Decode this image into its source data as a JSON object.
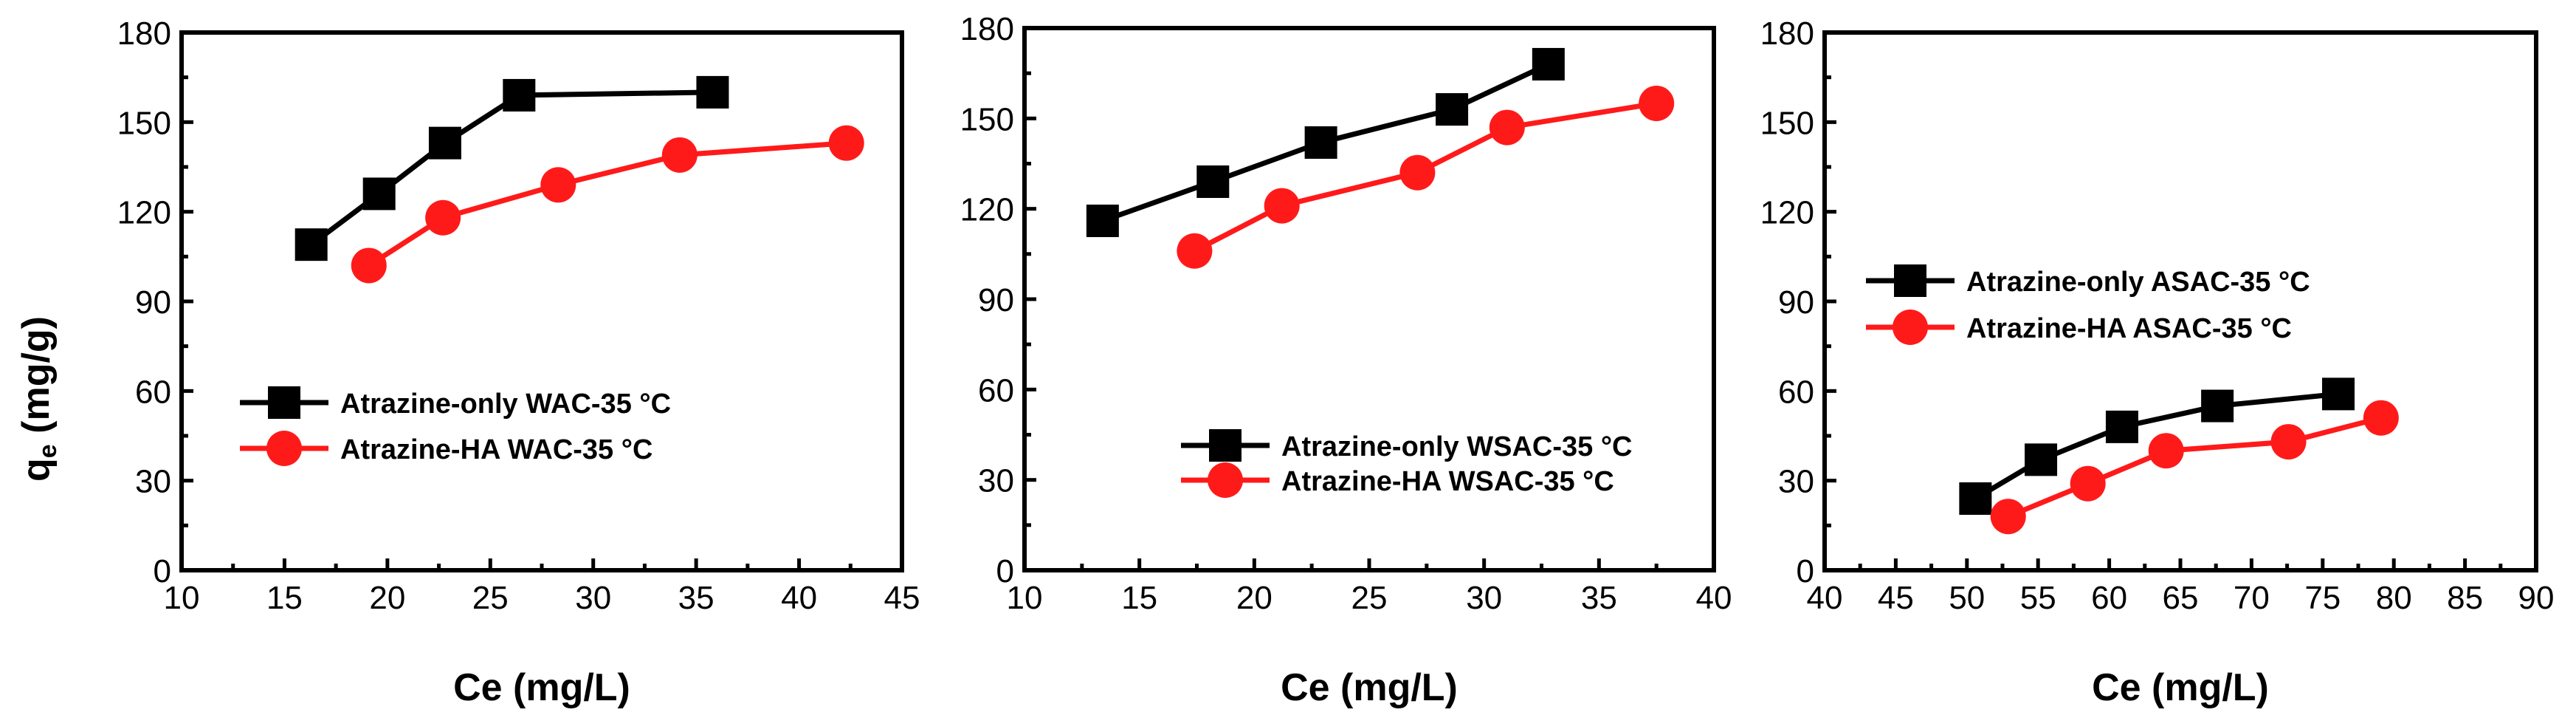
{
  "chart_data": [
    {
      "type": "line",
      "xlabel": "Ce (mg/L)",
      "ylabel": "qe (mg/g)",
      "ylabel_main": "q",
      "ylabel_sub": "e",
      "ylabel_rest": " (mg/g)",
      "xlim": [
        10,
        45
      ],
      "ylim": [
        0,
        180
      ],
      "xticks": [
        10,
        15,
        20,
        25,
        30,
        35,
        40,
        45
      ],
      "yticks": [
        0,
        30,
        60,
        90,
        120,
        150,
        180
      ],
      "legend_position": "center-left",
      "series": [
        {
          "name": "Atrazine-only WAC-35 °C",
          "color": "#000000",
          "marker": "square",
          "x": [
            16.3,
            19.6,
            22.8,
            26.4,
            35.8
          ],
          "y": [
            109,
            126,
            143,
            159,
            160
          ]
        },
        {
          "name": "Atrazine-HA  WAC-35 °C",
          "color": "#ff1a1a",
          "marker": "circle",
          "x": [
            19.1,
            22.7,
            28.3,
            34.2,
            42.3
          ],
          "y": [
            102,
            118,
            129,
            139,
            143
          ]
        }
      ]
    },
    {
      "type": "line",
      "xlabel": "Ce (mg/L)",
      "xlim": [
        10,
        40
      ],
      "ylim": [
        0,
        180
      ],
      "xticks": [
        10,
        15,
        20,
        25,
        30,
        35,
        40
      ],
      "yticks": [
        0,
        30,
        60,
        90,
        120,
        150,
        180
      ],
      "legend_position": "bottom-center",
      "series": [
        {
          "name": "Atrazine-only WSAC-35 °C",
          "color": "#000000",
          "marker": "square",
          "x": [
            13.4,
            18.2,
            22.9,
            28.6,
            32.8
          ],
          "y": [
            116,
            129,
            142,
            153,
            168
          ]
        },
        {
          "name": "Atrazine-HA  WSAC-35 °C",
          "color": "#ff1a1a",
          "marker": "circle",
          "x": [
            17.4,
            21.2,
            27.1,
            31.0,
            37.5
          ],
          "y": [
            106,
            121,
            132,
            147,
            155
          ]
        }
      ]
    },
    {
      "type": "line",
      "xlabel": "Ce (mg/L)",
      "xlim": [
        40,
        90
      ],
      "ylim": [
        0,
        180
      ],
      "xticks": [
        40,
        45,
        50,
        55,
        60,
        65,
        70,
        75,
        80,
        85,
        90
      ],
      "yticks": [
        0,
        30,
        60,
        90,
        120,
        150,
        180
      ],
      "legend_position": "center-left",
      "series": [
        {
          "name": "Atrazine-only ASAC-35 °C",
          "color": "#000000",
          "marker": "square",
          "x": [
            50.6,
            55.2,
            60.9,
            67.6,
            76.1
          ],
          "y": [
            24,
            37,
            48,
            55,
            59
          ]
        },
        {
          "name": "Atrazine-HA  ASAC-35 °C",
          "color": "#ff1a1a",
          "marker": "circle",
          "x": [
            52.9,
            58.5,
            64.0,
            72.6,
            79.1
          ],
          "y": [
            18,
            29,
            40,
            43,
            51
          ]
        }
      ]
    }
  ]
}
